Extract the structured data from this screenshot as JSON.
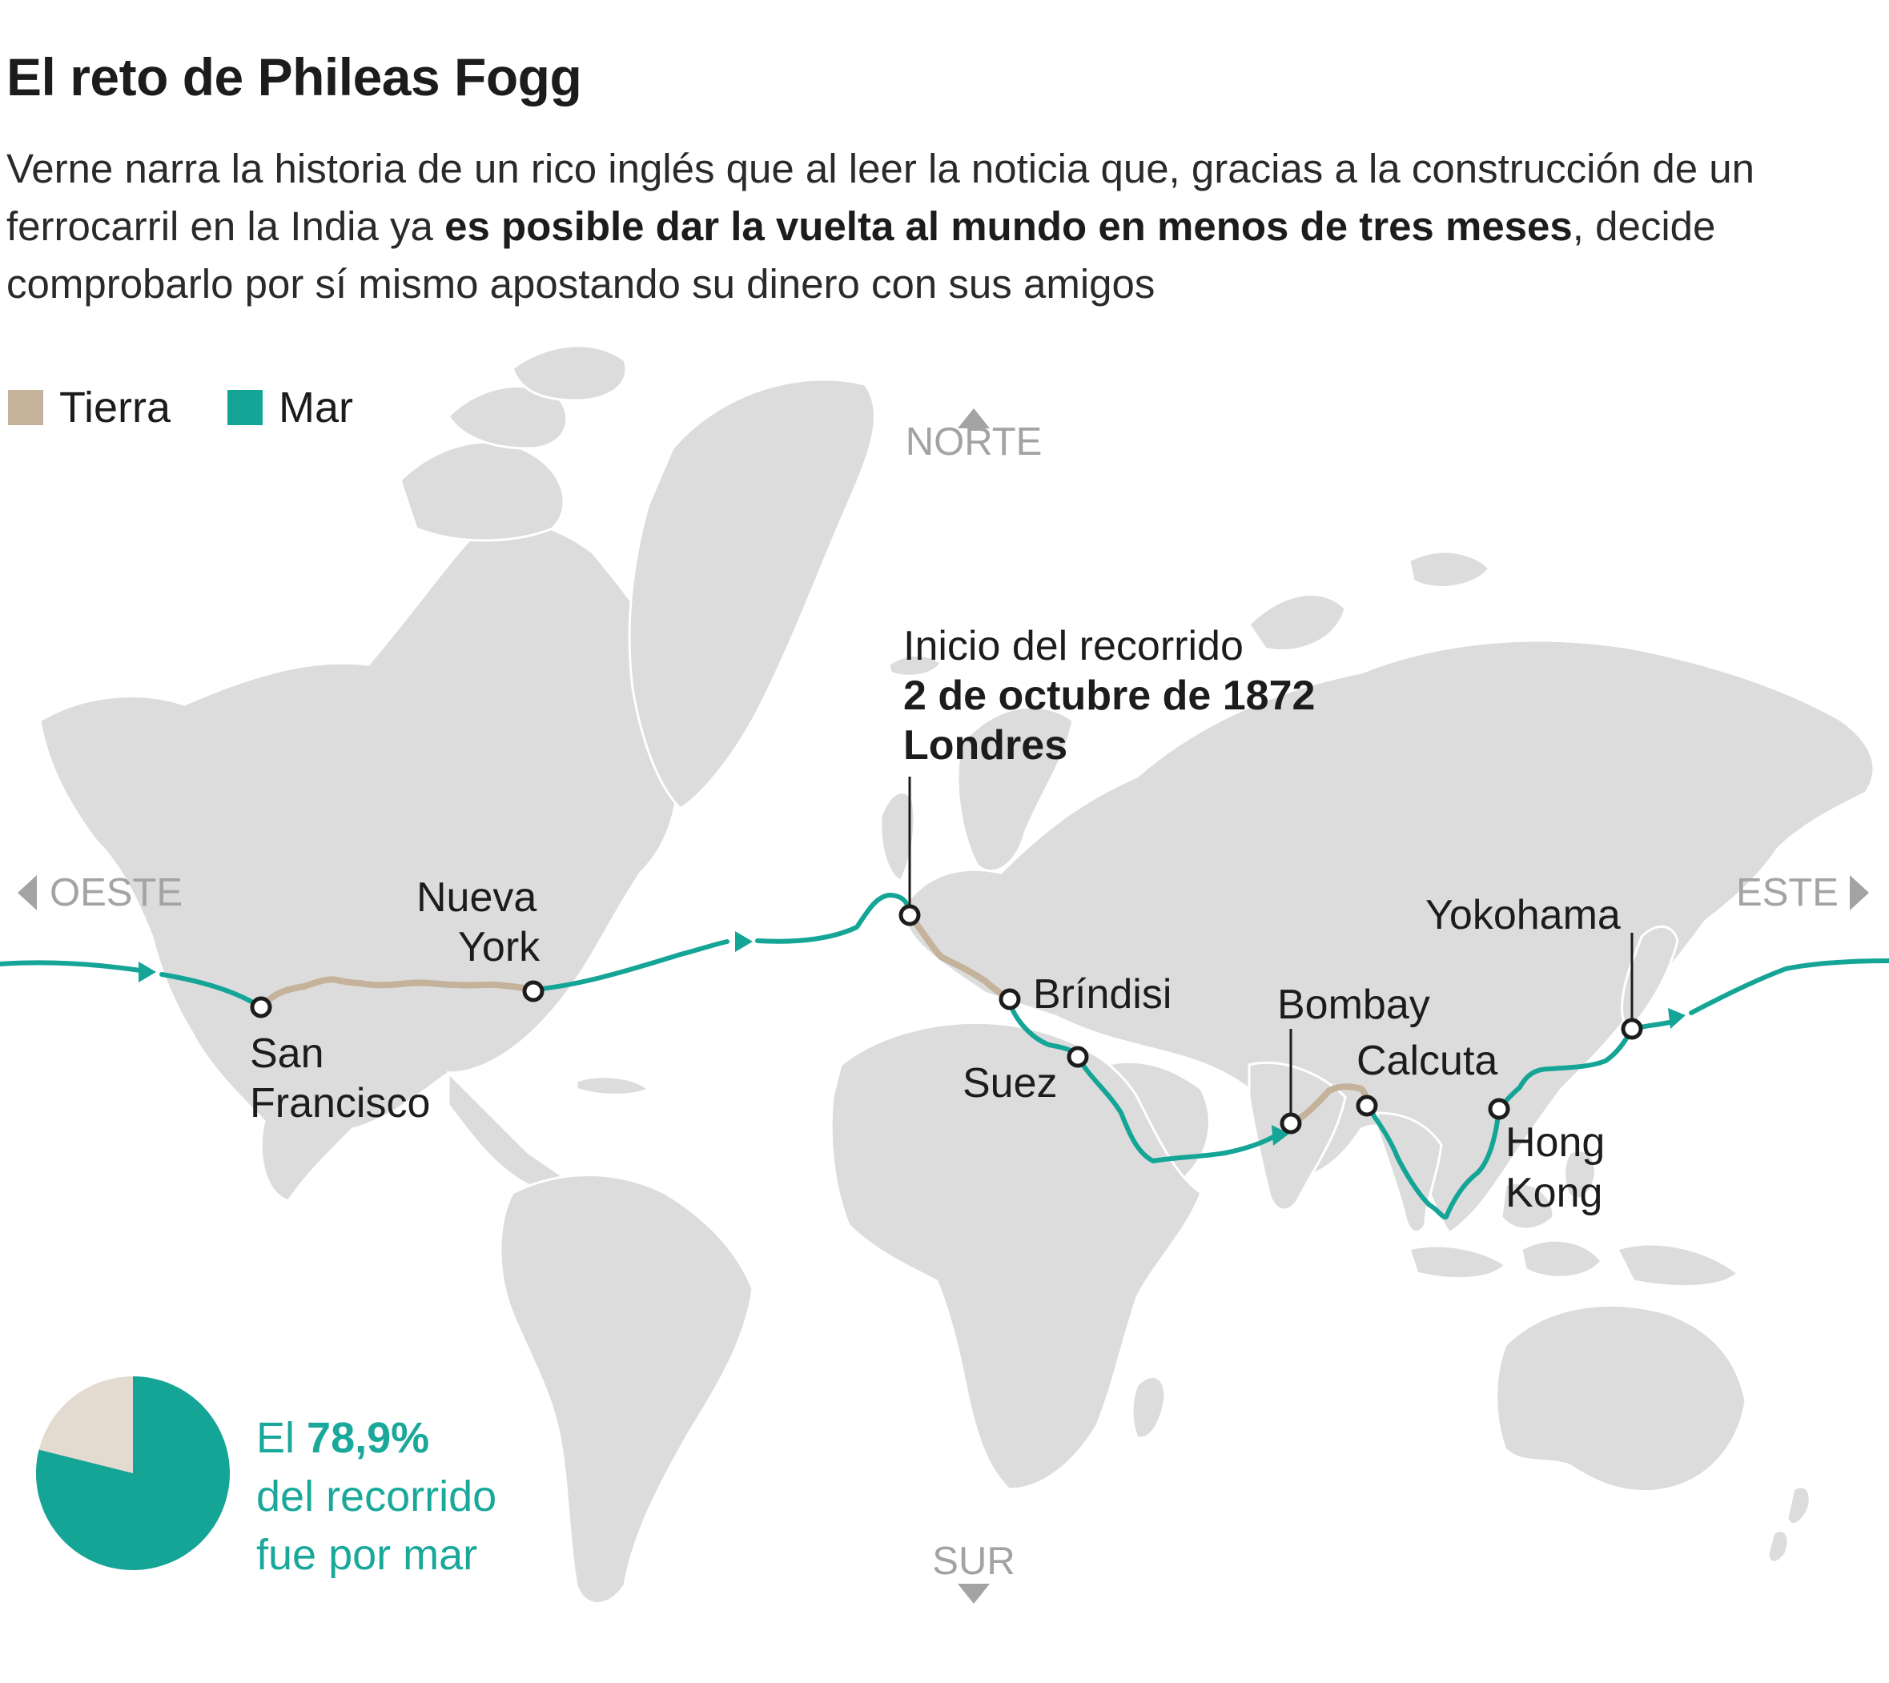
{
  "title": "El reto de Phileas Fogg",
  "subtitle": {
    "part1": "Verne narra la historia de un rico inglés que al leer la noticia que, gracias a la construcción de un ferrocarril en la India ya ",
    "bold": "es posible dar la vuelta al mundo en menos de tres meses",
    "part2": ", decide comprobarlo por sí mismo apostando su dinero con sus amigos"
  },
  "legend": {
    "land": "Tierra",
    "sea": "Mar"
  },
  "colors": {
    "land": "#c4b29a",
    "sea": "#14a596",
    "continents": "#dcdcdc",
    "pie_land": "#e4dbd0",
    "direction": "#a3a3a3"
  },
  "directions": {
    "north": "NORTE",
    "south": "SUR",
    "west": "OESTE",
    "east": "ESTE"
  },
  "start": {
    "line1": "Inicio del recorrido",
    "date": "2 de octubre de 1872",
    "city": "Londres"
  },
  "cities": {
    "sanfrancisco_1": "San",
    "sanfrancisco_2": "Francisco",
    "newyork_1": "Nueva",
    "newyork_2": "York",
    "brindisi": "Bríndisi",
    "suez": "Suez",
    "bombay": "Bombay",
    "calcuta": "Calcuta",
    "hongkong_1": "Hong",
    "hongkong_2": "Kong",
    "yokohama": "Yokohama"
  },
  "stat": {
    "prefix": "El ",
    "value": "78,9%",
    "line2": "del recorrido",
    "line3": "fue por mar",
    "sea_share": 0.789
  }
}
